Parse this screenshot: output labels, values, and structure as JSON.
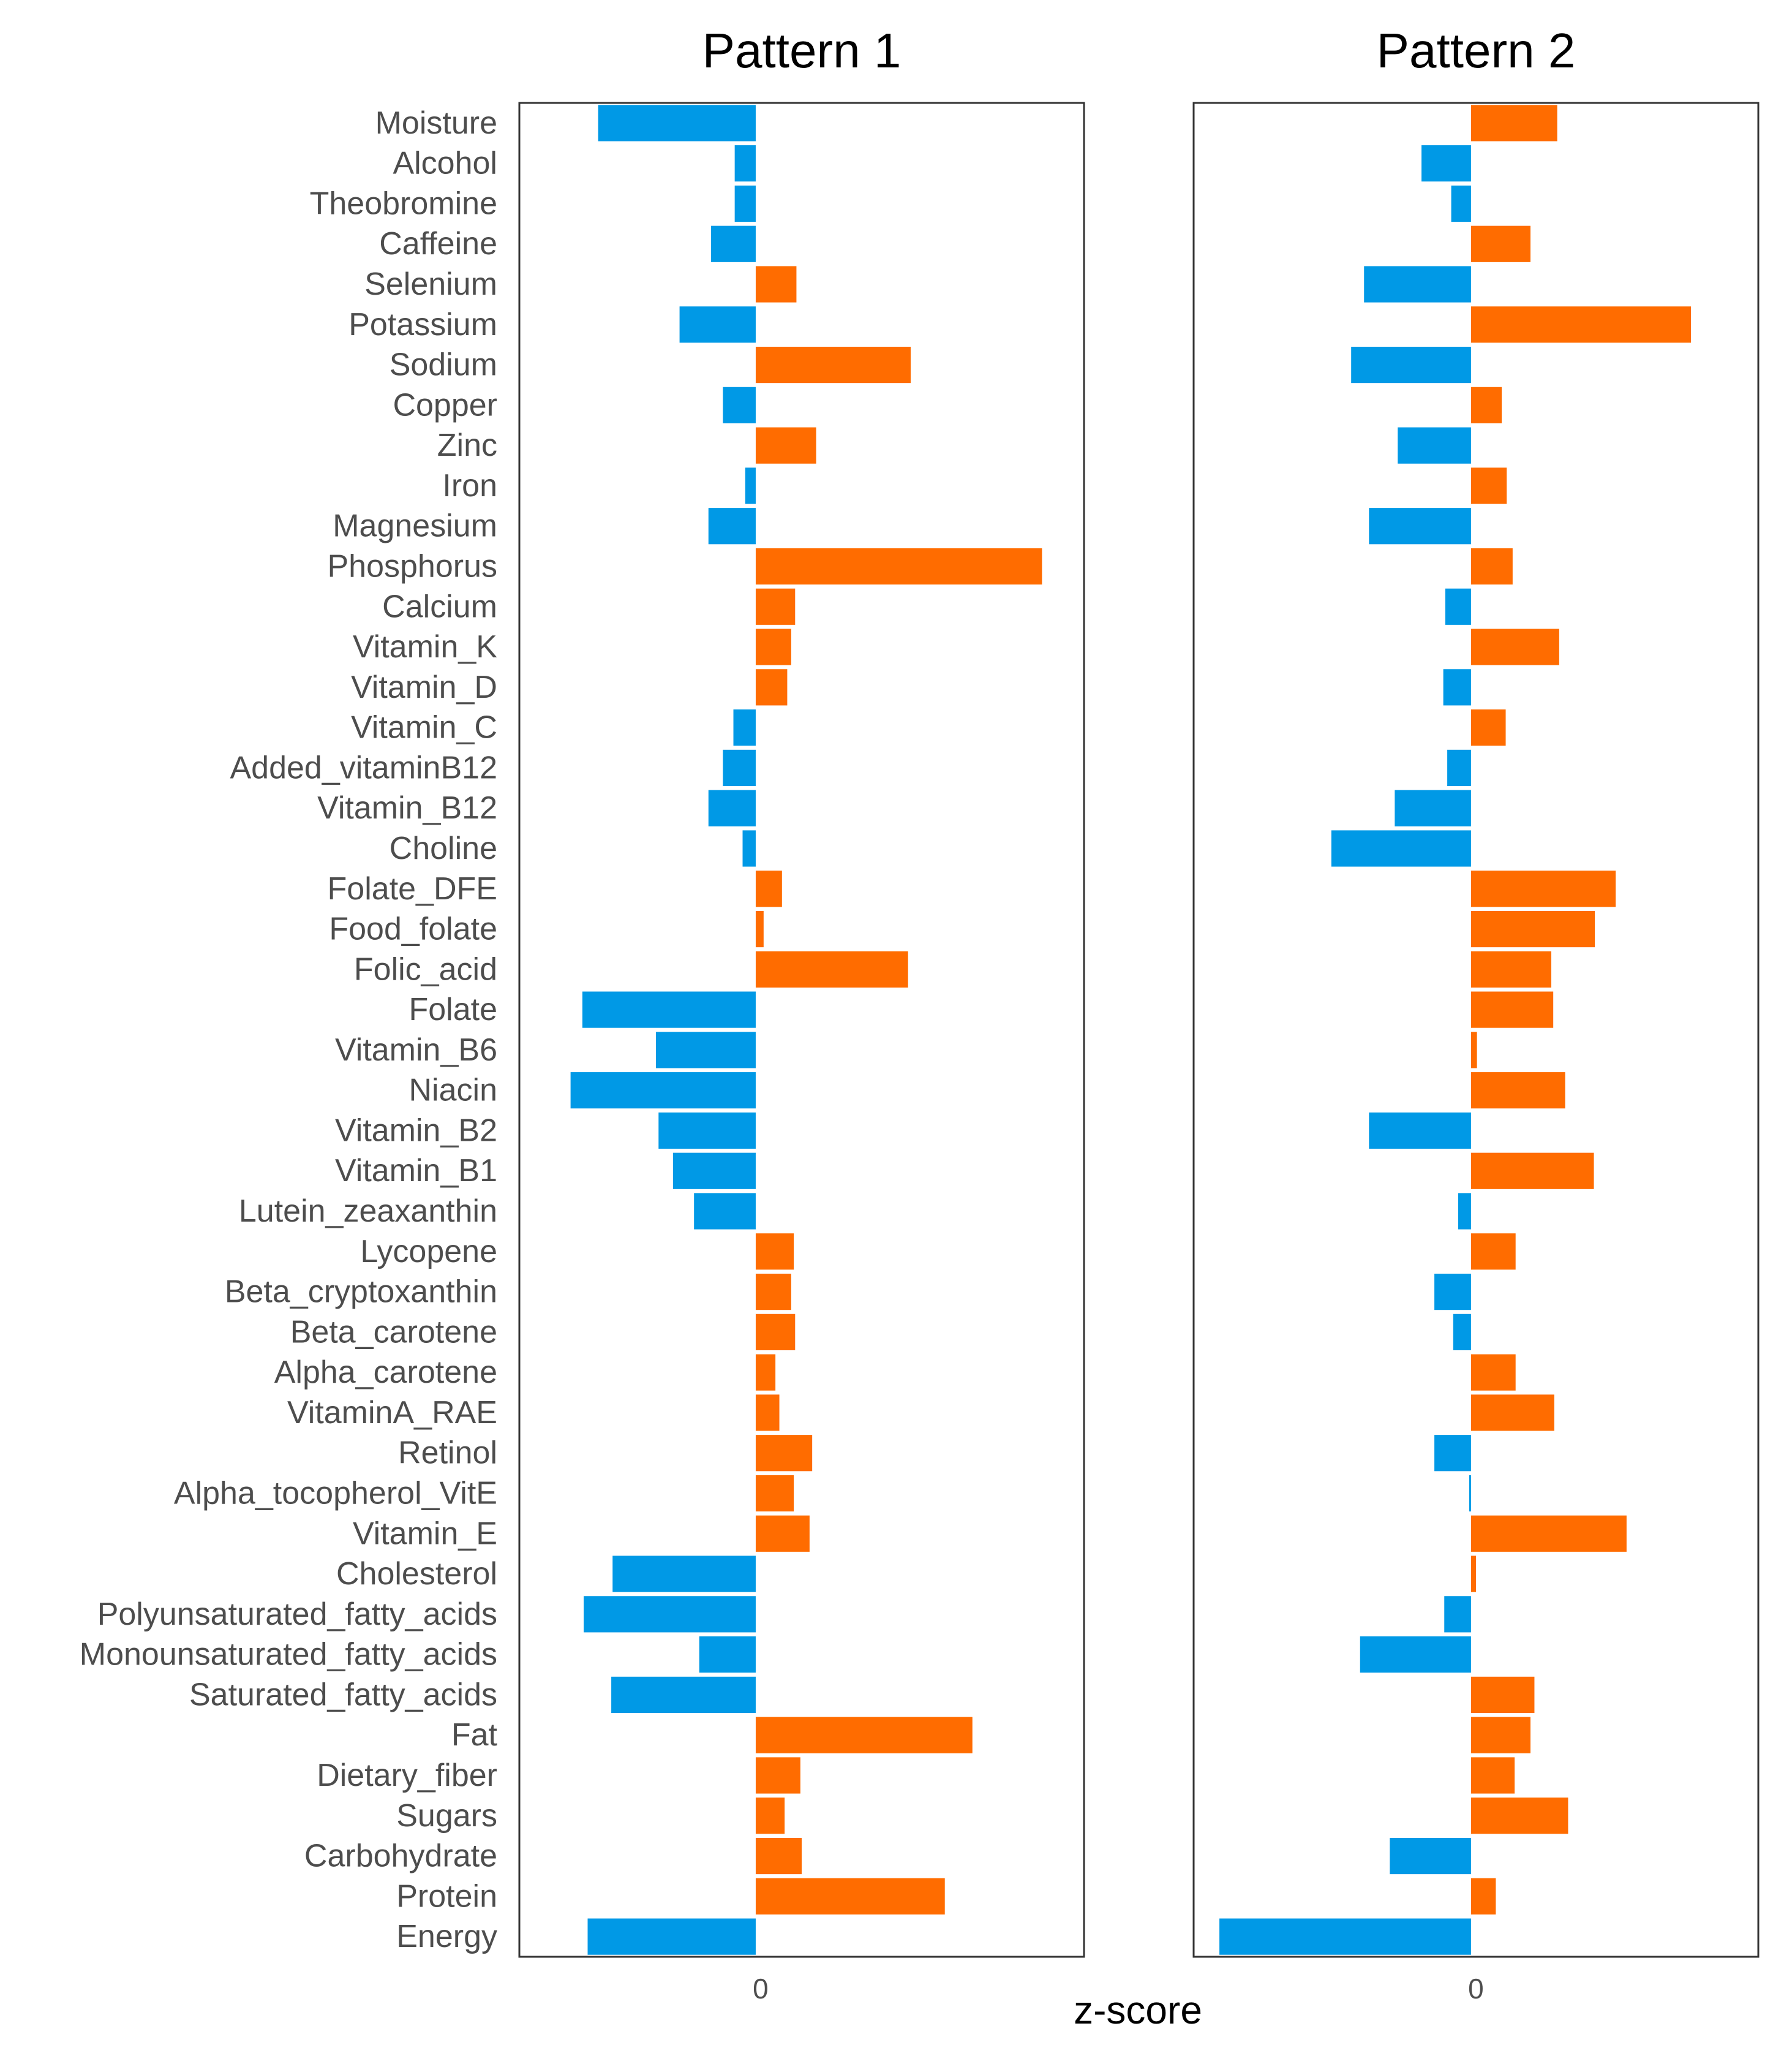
{
  "chart_data": {
    "type": "bar",
    "orientation": "horizontal",
    "title": "",
    "xlabel": "z-score",
    "ylabel": "",
    "x_tick_label": "0",
    "colors": {
      "positive": "#FF6C00",
      "negative": "#0099E6"
    },
    "categories": [
      "Moisture",
      "Alcohol",
      "Theobromine",
      "Caffeine",
      "Selenium",
      "Potassium",
      "Sodium",
      "Copper",
      "Zinc",
      "Iron",
      "Magnesium",
      "Phosphorus",
      "Calcium",
      "Vitamin_K",
      "Vitamin_D",
      "Vitamin_C",
      "Added_vitaminB12",
      "Vitamin_B12",
      "Choline",
      "Folate_DFE",
      "Food_folate",
      "Folic_acid",
      "Folate",
      "Vitamin_B6",
      "Niacin",
      "Vitamin_B2",
      "Vitamin_B1",
      "Lutein_zeaxanthin",
      "Lycopene",
      "Beta_cryptoxanthin",
      "Beta_carotene",
      "Alpha_carotene",
      "VitaminA_RAE",
      "Retinol",
      "Alpha_tocopherol_VitE",
      "Vitamin_E",
      "Cholesterol",
      "Polyunsaturated_fatty_acids",
      "Monounsaturated_fatty_acids",
      "Saturated_fatty_acids",
      "Fat",
      "Dietary_fiber",
      "Sugars",
      "Carbohydrate",
      "Protein",
      "Energy"
    ],
    "series": [
      {
        "name": "Pattern 1",
        "xlim": [
          -1.8,
          2.5
        ],
        "values": [
          -1.2,
          -0.16,
          -0.16,
          -0.34,
          0.31,
          -0.58,
          1.18,
          -0.25,
          0.46,
          -0.08,
          -0.36,
          2.18,
          0.3,
          0.27,
          0.24,
          -0.17,
          -0.25,
          -0.36,
          -0.1,
          0.2,
          0.06,
          1.16,
          -1.32,
          -0.76,
          -1.41,
          -0.74,
          -0.63,
          -0.47,
          0.29,
          0.27,
          0.3,
          0.15,
          0.18,
          0.43,
          0.29,
          0.41,
          -1.09,
          -1.31,
          -0.43,
          -1.1,
          1.65,
          0.34,
          0.22,
          0.35,
          1.44,
          -1.28
        ]
      },
      {
        "name": "Pattern 2",
        "xlim": [
          -2.8,
          2.9
        ],
        "values": [
          0.87,
          -0.5,
          -0.2,
          0.6,
          -1.08,
          2.22,
          -1.21,
          0.31,
          -0.74,
          0.36,
          -1.03,
          0.42,
          -0.26,
          0.89,
          -0.28,
          0.35,
          -0.24,
          -0.77,
          -1.41,
          1.46,
          1.25,
          0.81,
          0.83,
          0.06,
          0.95,
          -1.03,
          1.24,
          -0.13,
          0.45,
          -0.37,
          -0.18,
          0.45,
          0.84,
          -0.37,
          -0.01,
          1.57,
          0.05,
          -0.27,
          -1.12,
          0.64,
          0.6,
          0.44,
          0.98,
          -0.82,
          0.25,
          -2.54
        ]
      }
    ]
  }
}
